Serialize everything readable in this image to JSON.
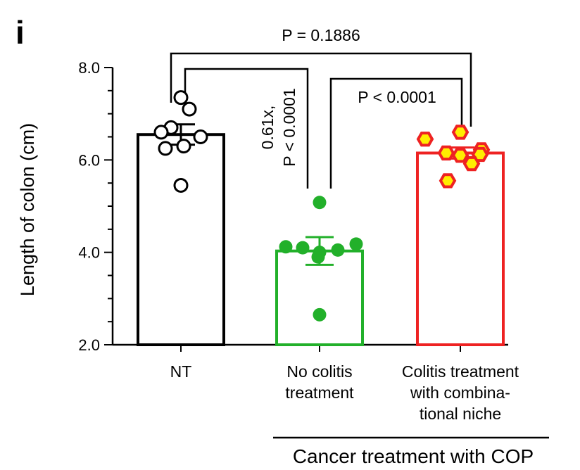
{
  "panel_label": "i",
  "chart_data": {
    "type": "bar",
    "ylabel": "Length of colon (cm)",
    "ylim": [
      2.0,
      8.0
    ],
    "yticks": [
      2.0,
      4.0,
      6.0,
      8.0
    ],
    "ytick_labels": [
      "2.0",
      "4.0",
      "6.0",
      "8.0"
    ],
    "categories": [
      "NT",
      "No colitis treatment",
      "Colitis treatment with combinational niche"
    ],
    "category_label_lines": [
      [
        "NT"
      ],
      [
        "No colitis",
        "treatment"
      ],
      [
        "Colitis treatment",
        "with combina-",
        "tional niche"
      ]
    ],
    "group_label": "Cancer treatment with COP",
    "bars": [
      {
        "category": "NT",
        "mean": 6.55,
        "sem": 0.22,
        "color": "#000000",
        "points": [
          7.35,
          7.1,
          6.7,
          6.6,
          6.5,
          6.3,
          6.25,
          5.45
        ],
        "marker": "open-circle"
      },
      {
        "category": "No colitis treatment",
        "mean": 4.03,
        "sem": 0.3,
        "color": "#22b02a",
        "points": [
          5.08,
          4.18,
          4.12,
          4.1,
          4.05,
          4.0,
          3.9,
          2.65
        ],
        "marker": "filled-circle"
      },
      {
        "category": "Colitis treatment with combinational niche",
        "mean": 6.15,
        "sem": 0.12,
        "color": "#ee2222",
        "points": [
          6.6,
          6.45,
          6.22,
          6.15,
          6.12,
          6.1,
          5.92,
          5.55
        ],
        "marker": "hexagon",
        "fill": "#ffee00"
      }
    ],
    "annotations": [
      {
        "text": "P = 0.1886",
        "from": 0,
        "to": 2
      },
      {
        "text": "P < 0.0001",
        "from": 1,
        "to": 2
      },
      {
        "text": "0.61x,",
        "from": 0,
        "to": 1,
        "line": 1
      },
      {
        "text": "P < 0.0001",
        "from": 0,
        "to": 1,
        "line": 2
      }
    ]
  }
}
